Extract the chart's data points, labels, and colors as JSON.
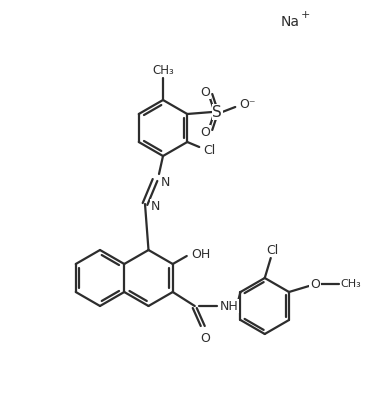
{
  "bg_color": "#ffffff",
  "bond_color": "#2d2d2d",
  "figsize": [
    3.88,
    3.94
  ],
  "dpi": 100,
  "line_width": 1.6,
  "font_size": 9,
  "na_text": "Na",
  "na_plus": "+",
  "cl_text": "Cl",
  "oh_text": "OH",
  "nh_text": "NH",
  "o_text": "O",
  "s_text": "S",
  "o_minus": "O⁻",
  "ch3_text": "CH₃"
}
